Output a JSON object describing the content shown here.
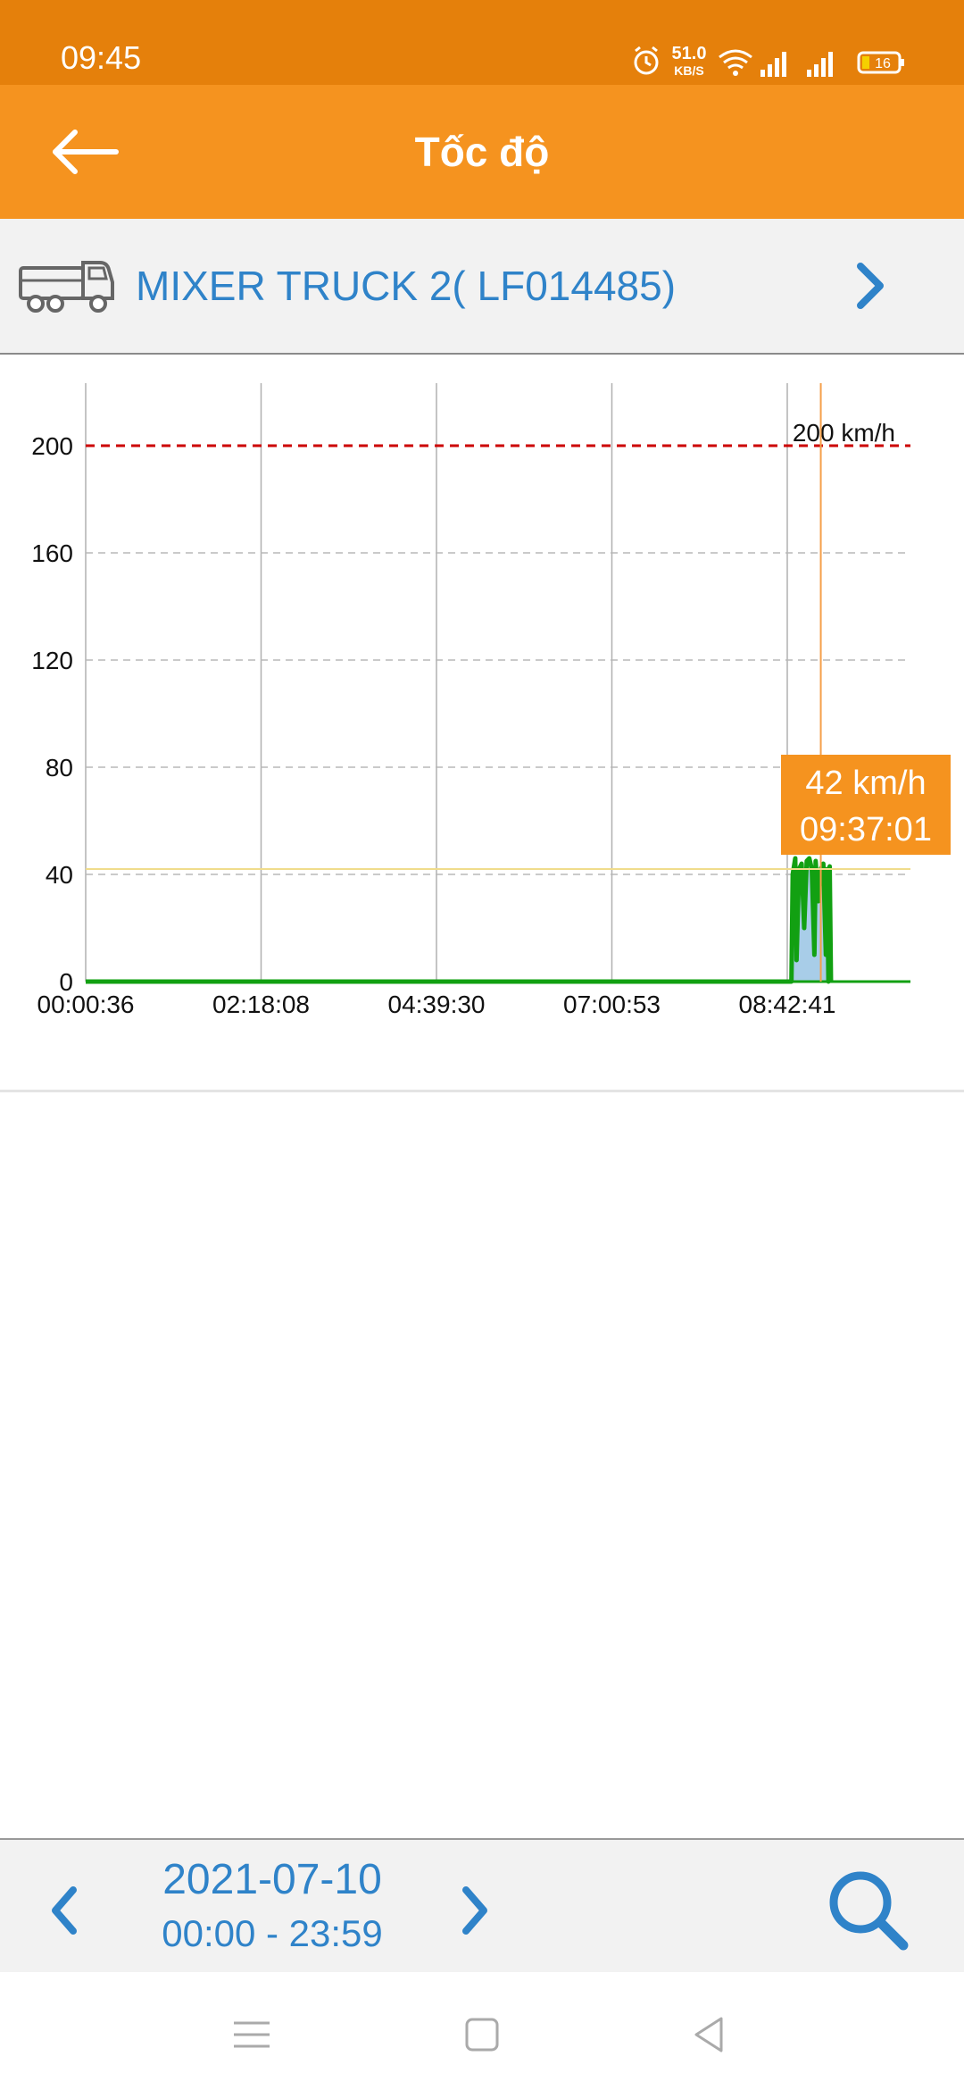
{
  "status_bar": {
    "time": "09:45",
    "net_speed": "51.0",
    "net_speed_unit": "KB/S",
    "battery": "16",
    "icons": [
      "alarm-icon",
      "wifi-icon",
      "signal-icon",
      "signal-icon",
      "battery-icon"
    ]
  },
  "app_bar": {
    "title": "Tốc độ",
    "back_icon": "arrow-left-icon"
  },
  "vehicle": {
    "name": "MIXER TRUCK 2( LF014485)",
    "icon": "truck-icon",
    "next_icon": "chevron-right-icon"
  },
  "chart_data": {
    "type": "area",
    "x_ticks": [
      "00:00:36",
      "02:18:08",
      "04:39:30",
      "07:00:53",
      "08:42:41"
    ],
    "y_ticks": [
      "0",
      "40",
      "80",
      "120",
      "160",
      "200"
    ],
    "ylim": [
      0,
      220
    ],
    "grid": true,
    "limit_line": {
      "value": 200,
      "label": "200 km/h",
      "color": "#cc0000"
    },
    "cursor": {
      "value": 42,
      "time": "09:37:01",
      "label_value": "42 km/h",
      "label_time": "09:37:01"
    },
    "series": [
      {
        "color": "#12a012",
        "fill": "#a8cde8",
        "points": [
          [
            "00:00:36",
            0
          ],
          [
            "09:14:00",
            0
          ],
          [
            "09:15:00",
            40
          ],
          [
            "09:17:00",
            46
          ],
          [
            "09:18:00",
            8
          ],
          [
            "09:20:00",
            42
          ],
          [
            "09:22:00",
            44
          ],
          [
            "09:24:00",
            20
          ],
          [
            "09:26:00",
            45
          ],
          [
            "09:28:00",
            46
          ],
          [
            "09:30:00",
            42
          ],
          [
            "09:32:00",
            10
          ],
          [
            "09:33:00",
            45
          ],
          [
            "09:35:00",
            30
          ],
          [
            "09:37:01",
            42
          ],
          [
            "09:39:00",
            44
          ],
          [
            "09:41:00",
            10
          ],
          [
            "09:42:00",
            42
          ],
          [
            "09:43:00",
            0
          ],
          [
            "09:44:00",
            43
          ],
          [
            "09:45:00",
            0
          ]
        ]
      }
    ]
  },
  "bottom_bar": {
    "date": "2021-07-10",
    "time_range": "00:00 - 23:59",
    "prev_icon": "chevron-left-icon",
    "next_icon": "chevron-right-icon",
    "search_icon": "search-icon"
  },
  "nav_bar": {
    "icons": [
      "menu-icon",
      "home-icon",
      "back-icon"
    ]
  },
  "colors": {
    "status_bar": "#e5800b",
    "app_bar": "#f5931f",
    "accent_blue": "#2f83c9",
    "speed_line": "#12a012"
  }
}
